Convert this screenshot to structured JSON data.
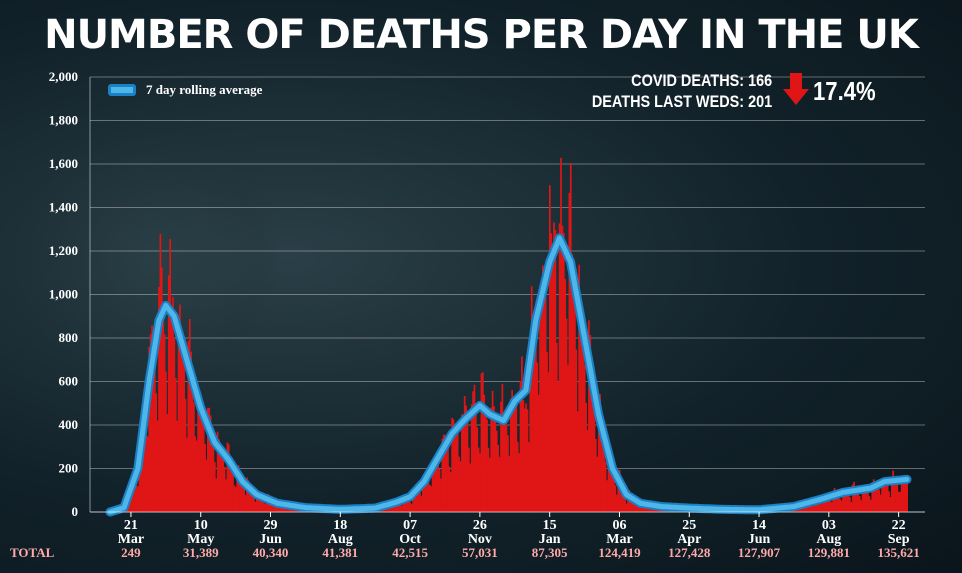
{
  "title": "NUMBER OF DEATHS PER DAY IN THE UK",
  "stats": {
    "covid_deaths": "COVID DEATHS: 166",
    "deaths_last_weds": "DEATHS LAST WEDS: 201",
    "change": "17.4%",
    "change_direction": "down"
  },
  "totals_label": "TOTAL",
  "colors": {
    "bars": "#e01616",
    "line": "#4fb6ea",
    "line_outline": "#1b80c4",
    "totals": "#ffaaaa",
    "arrow": "#e01616"
  },
  "chart_data": {
    "type": "bar",
    "title": "NUMBER OF DEATHS PER DAY IN THE UK",
    "ylim": [
      0,
      2000
    ],
    "yticks": [
      0,
      200,
      400,
      600,
      800,
      1000,
      1200,
      1400,
      1600,
      1800,
      2000
    ],
    "ytick_labels": [
      "0",
      "200",
      "400",
      "600",
      "800",
      "1,000",
      "1,200",
      "1,400",
      "1,600",
      "1,800",
      "2,000"
    ],
    "grid": true,
    "legend": {
      "label": "7 day rolling average",
      "position": "top-left"
    },
    "date_range_days": 571,
    "xticks": [
      {
        "day": 15,
        "day_label": "21",
        "month": "Mar",
        "total": "249"
      },
      {
        "day": 65,
        "day_label": "10",
        "month": "May",
        "total": "31,389"
      },
      {
        "day": 115,
        "day_label": "29",
        "month": "Jun",
        "total": "40,340"
      },
      {
        "day": 165,
        "day_label": "18",
        "month": "Aug",
        "total": "41,381"
      },
      {
        "day": 215,
        "day_label": "07",
        "month": "Oct",
        "total": "42,515"
      },
      {
        "day": 265,
        "day_label": "26",
        "month": "Nov",
        "total": "57,031"
      },
      {
        "day": 315,
        "day_label": "15",
        "month": "Jan",
        "total": "87,305"
      },
      {
        "day": 365,
        "day_label": "06",
        "month": "Mar",
        "total": "124,419"
      },
      {
        "day": 415,
        "day_label": "25",
        "month": "Apr",
        "total": "127,428"
      },
      {
        "day": 465,
        "day_label": "14",
        "month": "Jun",
        "total": "127,907"
      },
      {
        "day": 515,
        "day_label": "03",
        "month": "Aug",
        "total": "129,881"
      },
      {
        "day": 565,
        "day_label": "22",
        "month": "Sep",
        "total": "135,621"
      }
    ],
    "rolling_average_points": [
      [
        0,
        0
      ],
      [
        10,
        20
      ],
      [
        20,
        200
      ],
      [
        28,
        600
      ],
      [
        35,
        880
      ],
      [
        40,
        950
      ],
      [
        46,
        900
      ],
      [
        55,
        700
      ],
      [
        65,
        480
      ],
      [
        75,
        320
      ],
      [
        85,
        240
      ],
      [
        95,
        140
      ],
      [
        105,
        80
      ],
      [
        120,
        40
      ],
      [
        140,
        20
      ],
      [
        165,
        12
      ],
      [
        190,
        18
      ],
      [
        205,
        45
      ],
      [
        215,
        70
      ],
      [
        225,
        140
      ],
      [
        235,
        250
      ],
      [
        245,
        360
      ],
      [
        255,
        430
      ],
      [
        265,
        490
      ],
      [
        272,
        450
      ],
      [
        282,
        420
      ],
      [
        290,
        510
      ],
      [
        298,
        560
      ],
      [
        305,
        880
      ],
      [
        315,
        1150
      ],
      [
        322,
        1260
      ],
      [
        330,
        1150
      ],
      [
        340,
        800
      ],
      [
        350,
        450
      ],
      [
        360,
        200
      ],
      [
        370,
        80
      ],
      [
        380,
        40
      ],
      [
        395,
        25
      ],
      [
        415,
        18
      ],
      [
        440,
        12
      ],
      [
        465,
        10
      ],
      [
        490,
        25
      ],
      [
        510,
        60
      ],
      [
        525,
        90
      ],
      [
        545,
        110
      ],
      [
        555,
        140
      ],
      [
        571,
        150
      ]
    ],
    "series": [
      {
        "name": "Daily deaths",
        "render": "bars"
      },
      {
        "name": "7 day rolling average",
        "render": "line"
      }
    ]
  }
}
